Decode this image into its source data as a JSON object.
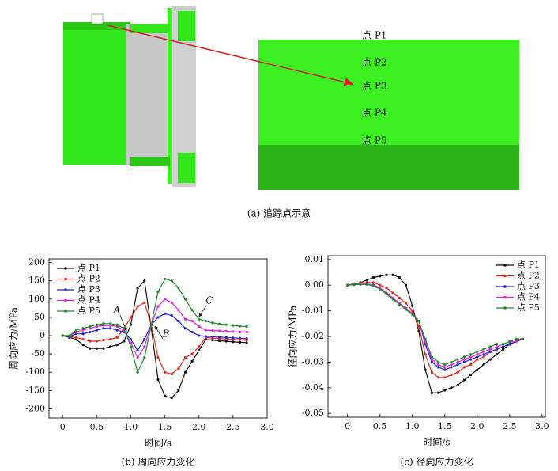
{
  "figure_a": {
    "labels": [
      "点 P1",
      "点 P2",
      "点 P3",
      "点 P4",
      "点 P5"
    ],
    "caption": "(a) 追踪点示意"
  },
  "chart_data": [
    {
      "type": "line",
      "caption": "(b) 周向应力变化",
      "x_label": "时间/s",
      "y_label": "周向应力/MPa",
      "xlim": [
        -0.2,
        3.0
      ],
      "ylim": [
        -225,
        210
      ],
      "xticks": [
        0,
        0.5,
        {
          "value": 1,
          "label": "1.0"
        },
        1.5,
        {
          "value": 2,
          "label": "2.0"
        },
        2.5,
        {
          "value": 3,
          "label": "3.0"
        }
      ],
      "yticks": [
        -200,
        -150,
        -100,
        -50,
        0,
        50,
        100,
        150,
        200
      ],
      "legend": "upper left",
      "annotations": [
        "A",
        "B",
        "C"
      ],
      "x": [
        0,
        0.1,
        0.2,
        0.3,
        0.4,
        0.5,
        0.6,
        0.7,
        0.8,
        0.9,
        1.0,
        1.1,
        1.2,
        1.3,
        1.4,
        1.5,
        1.6,
        1.7,
        1.8,
        1.9,
        2.0,
        2.1,
        2.2,
        2.3,
        2.4,
        2.5,
        2.6,
        2.7
      ],
      "series": [
        {
          "name": "点 P1",
          "color": "#111111",
          "values": [
            0,
            -5,
            -10,
            -25,
            -35,
            -35,
            -35,
            -30,
            -25,
            -15,
            30,
            130,
            150,
            20,
            -120,
            -165,
            -170,
            -150,
            -100,
            -70,
            -40,
            -10,
            -12,
            -14,
            -15,
            -17,
            -18,
            -19
          ]
        },
        {
          "name": "点 P2",
          "color": "#e8261c",
          "values": [
            0,
            -3,
            -5,
            -10,
            -15,
            -15,
            -12,
            -10,
            -5,
            20,
            50,
            80,
            90,
            30,
            -60,
            -100,
            -105,
            -90,
            -60,
            -50,
            -30,
            -5,
            -7,
            -8,
            -9,
            -10,
            -11,
            -12
          ]
        },
        {
          "name": "点 P3",
          "color": "#2222dd",
          "values": [
            0,
            -2,
            5,
            5,
            10,
            15,
            20,
            20,
            15,
            10,
            -10,
            -40,
            -10,
            30,
            50,
            60,
            55,
            40,
            20,
            10,
            0,
            -2,
            -3,
            -4,
            -5,
            -6,
            -7,
            -8
          ]
        },
        {
          "name": "点 P4",
          "color": "#e020e0",
          "values": [
            0,
            0,
            10,
            15,
            20,
            25,
            28,
            28,
            25,
            15,
            -20,
            -60,
            -30,
            30,
            80,
            100,
            90,
            70,
            45,
            40,
            25,
            15,
            14,
            13,
            12,
            11,
            10,
            10
          ]
        },
        {
          "name": "点 P5",
          "color": "#1e8a2a",
          "values": [
            0,
            0,
            15,
            20,
            25,
            30,
            33,
            33,
            30,
            20,
            -30,
            -100,
            -60,
            30,
            120,
            155,
            150,
            130,
            100,
            70,
            45,
            40,
            35,
            32,
            30,
            28,
            26,
            25
          ]
        }
      ]
    },
    {
      "type": "line",
      "caption": "(c) 径向应力变化",
      "x_label": "时间/s",
      "y_label": "径向应力/MPa",
      "xlim": [
        -0.3,
        3.05
      ],
      "ylim": [
        -0.0515,
        0.0115
      ],
      "xticks": [
        0,
        0.5,
        {
          "value": 1,
          "label": "1.0"
        },
        1.5,
        {
          "value": 2,
          "label": "2.0"
        },
        2.5,
        {
          "value": 3,
          "label": "3.0"
        }
      ],
      "yticks": [
        0.01,
        {
          "value": 0,
          "label": "0.00"
        },
        -0.01,
        -0.02,
        -0.03,
        -0.04,
        -0.05
      ],
      "legend": "upper right",
      "x": [
        0,
        0.1,
        0.2,
        0.3,
        0.4,
        0.5,
        0.6,
        0.7,
        0.8,
        0.9,
        1.0,
        1.1,
        1.2,
        1.3,
        1.4,
        1.5,
        1.6,
        1.7,
        1.8,
        1.9,
        2.0,
        2.1,
        2.2,
        2.3,
        2.4,
        2.5,
        2.6,
        2.7
      ],
      "series": [
        {
          "name": "点 P1",
          "color": "#111111",
          "values": [
            0,
            0.0005,
            0.001,
            0.002,
            0.003,
            0.0035,
            0.004,
            0.004,
            0.003,
            0,
            -0.008,
            -0.018,
            -0.033,
            -0.042,
            -0.042,
            -0.041,
            -0.04,
            -0.039,
            -0.037,
            -0.035,
            -0.033,
            -0.031,
            -0.029,
            -0.027,
            -0.025,
            -0.023,
            -0.022,
            -0.021
          ]
        },
        {
          "name": "点 P2",
          "color": "#e8261c",
          "values": [
            0,
            0.0003,
            0.0007,
            0.001,
            0.001,
            0,
            -0.001,
            -0.003,
            -0.005,
            -0.007,
            -0.01,
            -0.016,
            -0.027,
            -0.034,
            -0.036,
            -0.036,
            -0.035,
            -0.034,
            -0.032,
            -0.031,
            -0.029,
            -0.028,
            -0.026,
            -0.025,
            -0.024,
            -0.023,
            -0.022,
            -0.021
          ]
        },
        {
          "name": "点 P3",
          "color": "#2222dd",
          "values": [
            0,
            0.0002,
            0.0004,
            0.0005,
            0,
            -0.001,
            -0.003,
            -0.005,
            -0.007,
            -0.009,
            -0.011,
            -0.014,
            -0.023,
            -0.03,
            -0.032,
            -0.033,
            -0.032,
            -0.031,
            -0.03,
            -0.029,
            -0.028,
            -0.027,
            -0.026,
            -0.025,
            -0.024,
            -0.023,
            -0.022,
            -0.021
          ]
        },
        {
          "name": "点 P4",
          "color": "#e020e0",
          "values": [
            0,
            0.0002,
            0.0004,
            0.0004,
            -0.0002,
            -0.001,
            -0.003,
            -0.005,
            -0.007,
            -0.009,
            -0.011,
            -0.014,
            -0.022,
            -0.029,
            -0.031,
            -0.032,
            -0.031,
            -0.03,
            -0.029,
            -0.028,
            -0.027,
            -0.026,
            -0.025,
            -0.024,
            -0.023,
            -0.022,
            -0.022,
            -0.021
          ]
        },
        {
          "name": "点 P5",
          "color": "#1e8a2a",
          "values": [
            0,
            0.0002,
            0.0003,
            0.0003,
            -0.0003,
            -0.0015,
            -0.0035,
            -0.0055,
            -0.0075,
            -0.0095,
            -0.0115,
            -0.014,
            -0.021,
            -0.028,
            -0.03,
            -0.031,
            -0.03,
            -0.029,
            -0.028,
            -0.027,
            -0.026,
            -0.025,
            -0.024,
            -0.023,
            -0.023,
            -0.022,
            -0.021,
            -0.021
          ]
        }
      ]
    }
  ]
}
